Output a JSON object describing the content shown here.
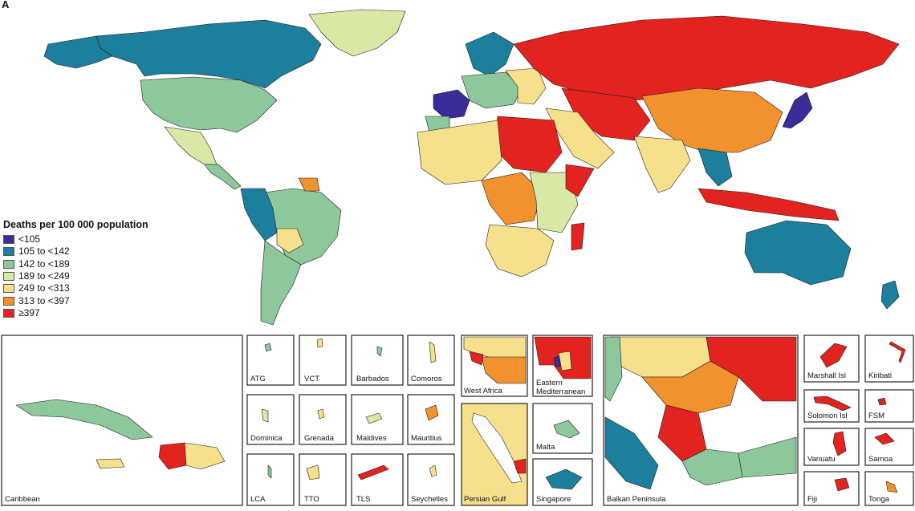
{
  "panel_label": "A",
  "legend": {
    "title": "Deaths per 100 000 population",
    "items": [
      {
        "label": "<105",
        "color": "#3b2d99"
      },
      {
        "label": "105 to <142",
        "color": "#1d7f9e"
      },
      {
        "label": "142 to <189",
        "color": "#8cc89b"
      },
      {
        "label": "189 to <249",
        "color": "#d9e8a4"
      },
      {
        "label": "249 to <313",
        "color": "#f7e08c"
      },
      {
        "label": "313 to <397",
        "color": "#f2922f"
      },
      {
        "label": "≥397",
        "color": "#e3231f"
      }
    ]
  },
  "insets": {
    "caribbean": "Caribbean",
    "atg": "ATG",
    "vct": "VCT",
    "barbados": "Barbados",
    "comoros": "Comoros",
    "dominica": "Dominica",
    "grenada": "Grenada",
    "maldives": "Maldives",
    "mauritius": "Mauritius",
    "lca": "LCA",
    "tto": "TTO",
    "tls": "TLS",
    "seychelles": "Seychelles",
    "west_africa": "West Africa",
    "persian_gulf": "Persian Gulf",
    "eastern_med_1": "Eastern",
    "eastern_med_2": "Mediterranean",
    "malta": "Malta",
    "singapore": "Singapore",
    "balkan": "Balkan Peninsula",
    "marshall": "Marshall Isl",
    "kiribati": "Kiribati",
    "solomon": "Solomon Isl",
    "fsm": "FSM",
    "vanuatu": "Vanuatu",
    "samoa": "Samoa",
    "fiji": "Fiji",
    "tonga": "Tonga"
  }
}
